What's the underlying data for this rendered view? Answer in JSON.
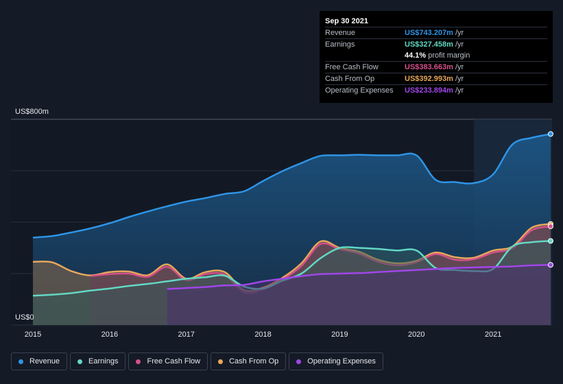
{
  "tooltip": {
    "date": "Sep 30 2021",
    "rows": [
      {
        "label": "Revenue",
        "value": "US$743.207m",
        "unit": "/yr",
        "color": "#2e94e6"
      },
      {
        "label": "Earnings",
        "value": "US$327.458m",
        "unit": "/yr",
        "color": "#62d8c4"
      },
      {
        "label": "",
        "value": "44.1%",
        "unit": "profit margin",
        "color": "#ffffff"
      },
      {
        "label": "Free Cash Flow",
        "value": "US$383.663m",
        "unit": "/yr",
        "color": "#d5508a"
      },
      {
        "label": "Cash From Op",
        "value": "US$392.993m",
        "unit": "/yr",
        "color": "#e8a75a"
      },
      {
        "label": "Operating Expenses",
        "value": "US$233.894m",
        "unit": "/yr",
        "color": "#a046e8"
      }
    ]
  },
  "legend": [
    {
      "label": "Revenue",
      "color": "#2e94e6"
    },
    {
      "label": "Earnings",
      "color": "#62d8c4"
    },
    {
      "label": "Free Cash Flow",
      "color": "#d5508a"
    },
    {
      "label": "Cash From Op",
      "color": "#e8a75a"
    },
    {
      "label": "Operating Expenses",
      "color": "#a046e8"
    }
  ],
  "chart_data": {
    "type": "area",
    "y_top_label": "US$800m",
    "y_bottom_label": "US$0",
    "ylim": [
      0,
      800
    ],
    "xlim": [
      2015.0,
      2021.75
    ],
    "x_ticks": [
      {
        "value": 2015,
        "label": "2015"
      },
      {
        "value": 2016,
        "label": "2016"
      },
      {
        "value": 2017,
        "label": "2017"
      },
      {
        "value": 2018,
        "label": "2018"
      },
      {
        "value": 2019,
        "label": "2019"
      },
      {
        "value": 2020,
        "label": "2020"
      },
      {
        "value": 2021,
        "label": "2021"
      }
    ],
    "grid": true,
    "highlight_start": 2020.75,
    "series": [
      {
        "name": "Revenue",
        "color": "#2e94e6",
        "fill": true,
        "points": [
          [
            2015.0,
            340
          ],
          [
            2015.25,
            346
          ],
          [
            2015.5,
            360
          ],
          [
            2015.75,
            376
          ],
          [
            2016.0,
            396
          ],
          [
            2016.25,
            420
          ],
          [
            2016.5,
            442
          ],
          [
            2016.75,
            462
          ],
          [
            2017.0,
            480
          ],
          [
            2017.25,
            494
          ],
          [
            2017.5,
            510
          ],
          [
            2017.75,
            520
          ],
          [
            2018.0,
            560
          ],
          [
            2018.25,
            598
          ],
          [
            2018.5,
            630
          ],
          [
            2018.75,
            658
          ],
          [
            2019.0,
            660
          ],
          [
            2019.25,
            662
          ],
          [
            2019.5,
            660
          ],
          [
            2019.75,
            660
          ],
          [
            2020.0,
            660
          ],
          [
            2020.25,
            565
          ],
          [
            2020.5,
            556
          ],
          [
            2020.75,
            552
          ],
          [
            2021.0,
            586
          ],
          [
            2021.25,
            702
          ],
          [
            2021.5,
            728
          ],
          [
            2021.75,
            743
          ]
        ]
      },
      {
        "name": "Cash From Op",
        "color": "#e8a75a",
        "fill": true,
        "points": [
          [
            2015.0,
            246
          ],
          [
            2015.25,
            244
          ],
          [
            2015.5,
            210
          ],
          [
            2015.75,
            193
          ],
          [
            2016.0,
            206
          ],
          [
            2016.25,
            208
          ],
          [
            2016.5,
            194
          ],
          [
            2016.75,
            236
          ],
          [
            2017.0,
            180
          ],
          [
            2017.25,
            206
          ],
          [
            2017.5,
            206
          ],
          [
            2017.75,
            136
          ],
          [
            2018.0,
            146
          ],
          [
            2018.25,
            183
          ],
          [
            2018.5,
            240
          ],
          [
            2018.75,
            325
          ],
          [
            2019.0,
            300
          ],
          [
            2019.25,
            285
          ],
          [
            2019.5,
            254
          ],
          [
            2019.75,
            240
          ],
          [
            2020.0,
            250
          ],
          [
            2020.25,
            282
          ],
          [
            2020.5,
            264
          ],
          [
            2020.75,
            262
          ],
          [
            2021.0,
            290
          ],
          [
            2021.25,
            305
          ],
          [
            2021.5,
            378
          ],
          [
            2021.75,
            393
          ]
        ]
      },
      {
        "name": "Free Cash Flow",
        "color": "#d5508a",
        "fill": true,
        "points": [
          [
            2015.75,
            190
          ],
          [
            2016.0,
            198
          ],
          [
            2016.25,
            200
          ],
          [
            2016.5,
            188
          ],
          [
            2016.75,
            226
          ],
          [
            2017.0,
            174
          ],
          [
            2017.25,
            198
          ],
          [
            2017.5,
            196
          ],
          [
            2017.75,
            128
          ],
          [
            2018.0,
            138
          ],
          [
            2018.25,
            176
          ],
          [
            2018.5,
            230
          ],
          [
            2018.75,
            315
          ],
          [
            2019.0,
            295
          ],
          [
            2019.25,
            278
          ],
          [
            2019.5,
            246
          ],
          [
            2019.75,
            232
          ],
          [
            2020.0,
            244
          ],
          [
            2020.25,
            276
          ],
          [
            2020.5,
            254
          ],
          [
            2020.75,
            256
          ],
          [
            2021.0,
            282
          ],
          [
            2021.25,
            298
          ],
          [
            2021.5,
            368
          ],
          [
            2021.75,
            384
          ]
        ]
      },
      {
        "name": "Earnings",
        "color": "#62d8c4",
        "fill": true,
        "points": [
          [
            2015.0,
            114
          ],
          [
            2015.25,
            118
          ],
          [
            2015.5,
            124
          ],
          [
            2015.75,
            134
          ],
          [
            2016.0,
            142
          ],
          [
            2016.25,
            152
          ],
          [
            2016.5,
            160
          ],
          [
            2016.75,
            170
          ],
          [
            2017.0,
            180
          ],
          [
            2017.25,
            186
          ],
          [
            2017.5,
            192
          ],
          [
            2017.75,
            150
          ],
          [
            2018.0,
            142
          ],
          [
            2018.25,
            172
          ],
          [
            2018.5,
            200
          ],
          [
            2018.75,
            260
          ],
          [
            2019.0,
            300
          ],
          [
            2019.25,
            300
          ],
          [
            2019.5,
            296
          ],
          [
            2019.75,
            290
          ],
          [
            2020.0,
            290
          ],
          [
            2020.25,
            222
          ],
          [
            2020.5,
            214
          ],
          [
            2020.75,
            210
          ],
          [
            2021.0,
            218
          ],
          [
            2021.25,
            305
          ],
          [
            2021.5,
            322
          ],
          [
            2021.75,
            327
          ]
        ]
      },
      {
        "name": "Operating Expenses",
        "color": "#a046e8",
        "fill": true,
        "points": [
          [
            2016.75,
            140
          ],
          [
            2017.0,
            144
          ],
          [
            2017.25,
            148
          ],
          [
            2017.5,
            154
          ],
          [
            2017.75,
            156
          ],
          [
            2018.0,
            170
          ],
          [
            2018.25,
            180
          ],
          [
            2018.5,
            190
          ],
          [
            2018.75,
            198
          ],
          [
            2019.0,
            200
          ],
          [
            2019.25,
            202
          ],
          [
            2019.5,
            206
          ],
          [
            2019.75,
            210
          ],
          [
            2020.0,
            214
          ],
          [
            2020.25,
            218
          ],
          [
            2020.5,
            222
          ],
          [
            2020.75,
            224
          ],
          [
            2021.0,
            226
          ],
          [
            2021.25,
            228
          ],
          [
            2021.5,
            232
          ],
          [
            2021.75,
            234
          ]
        ]
      }
    ]
  }
}
